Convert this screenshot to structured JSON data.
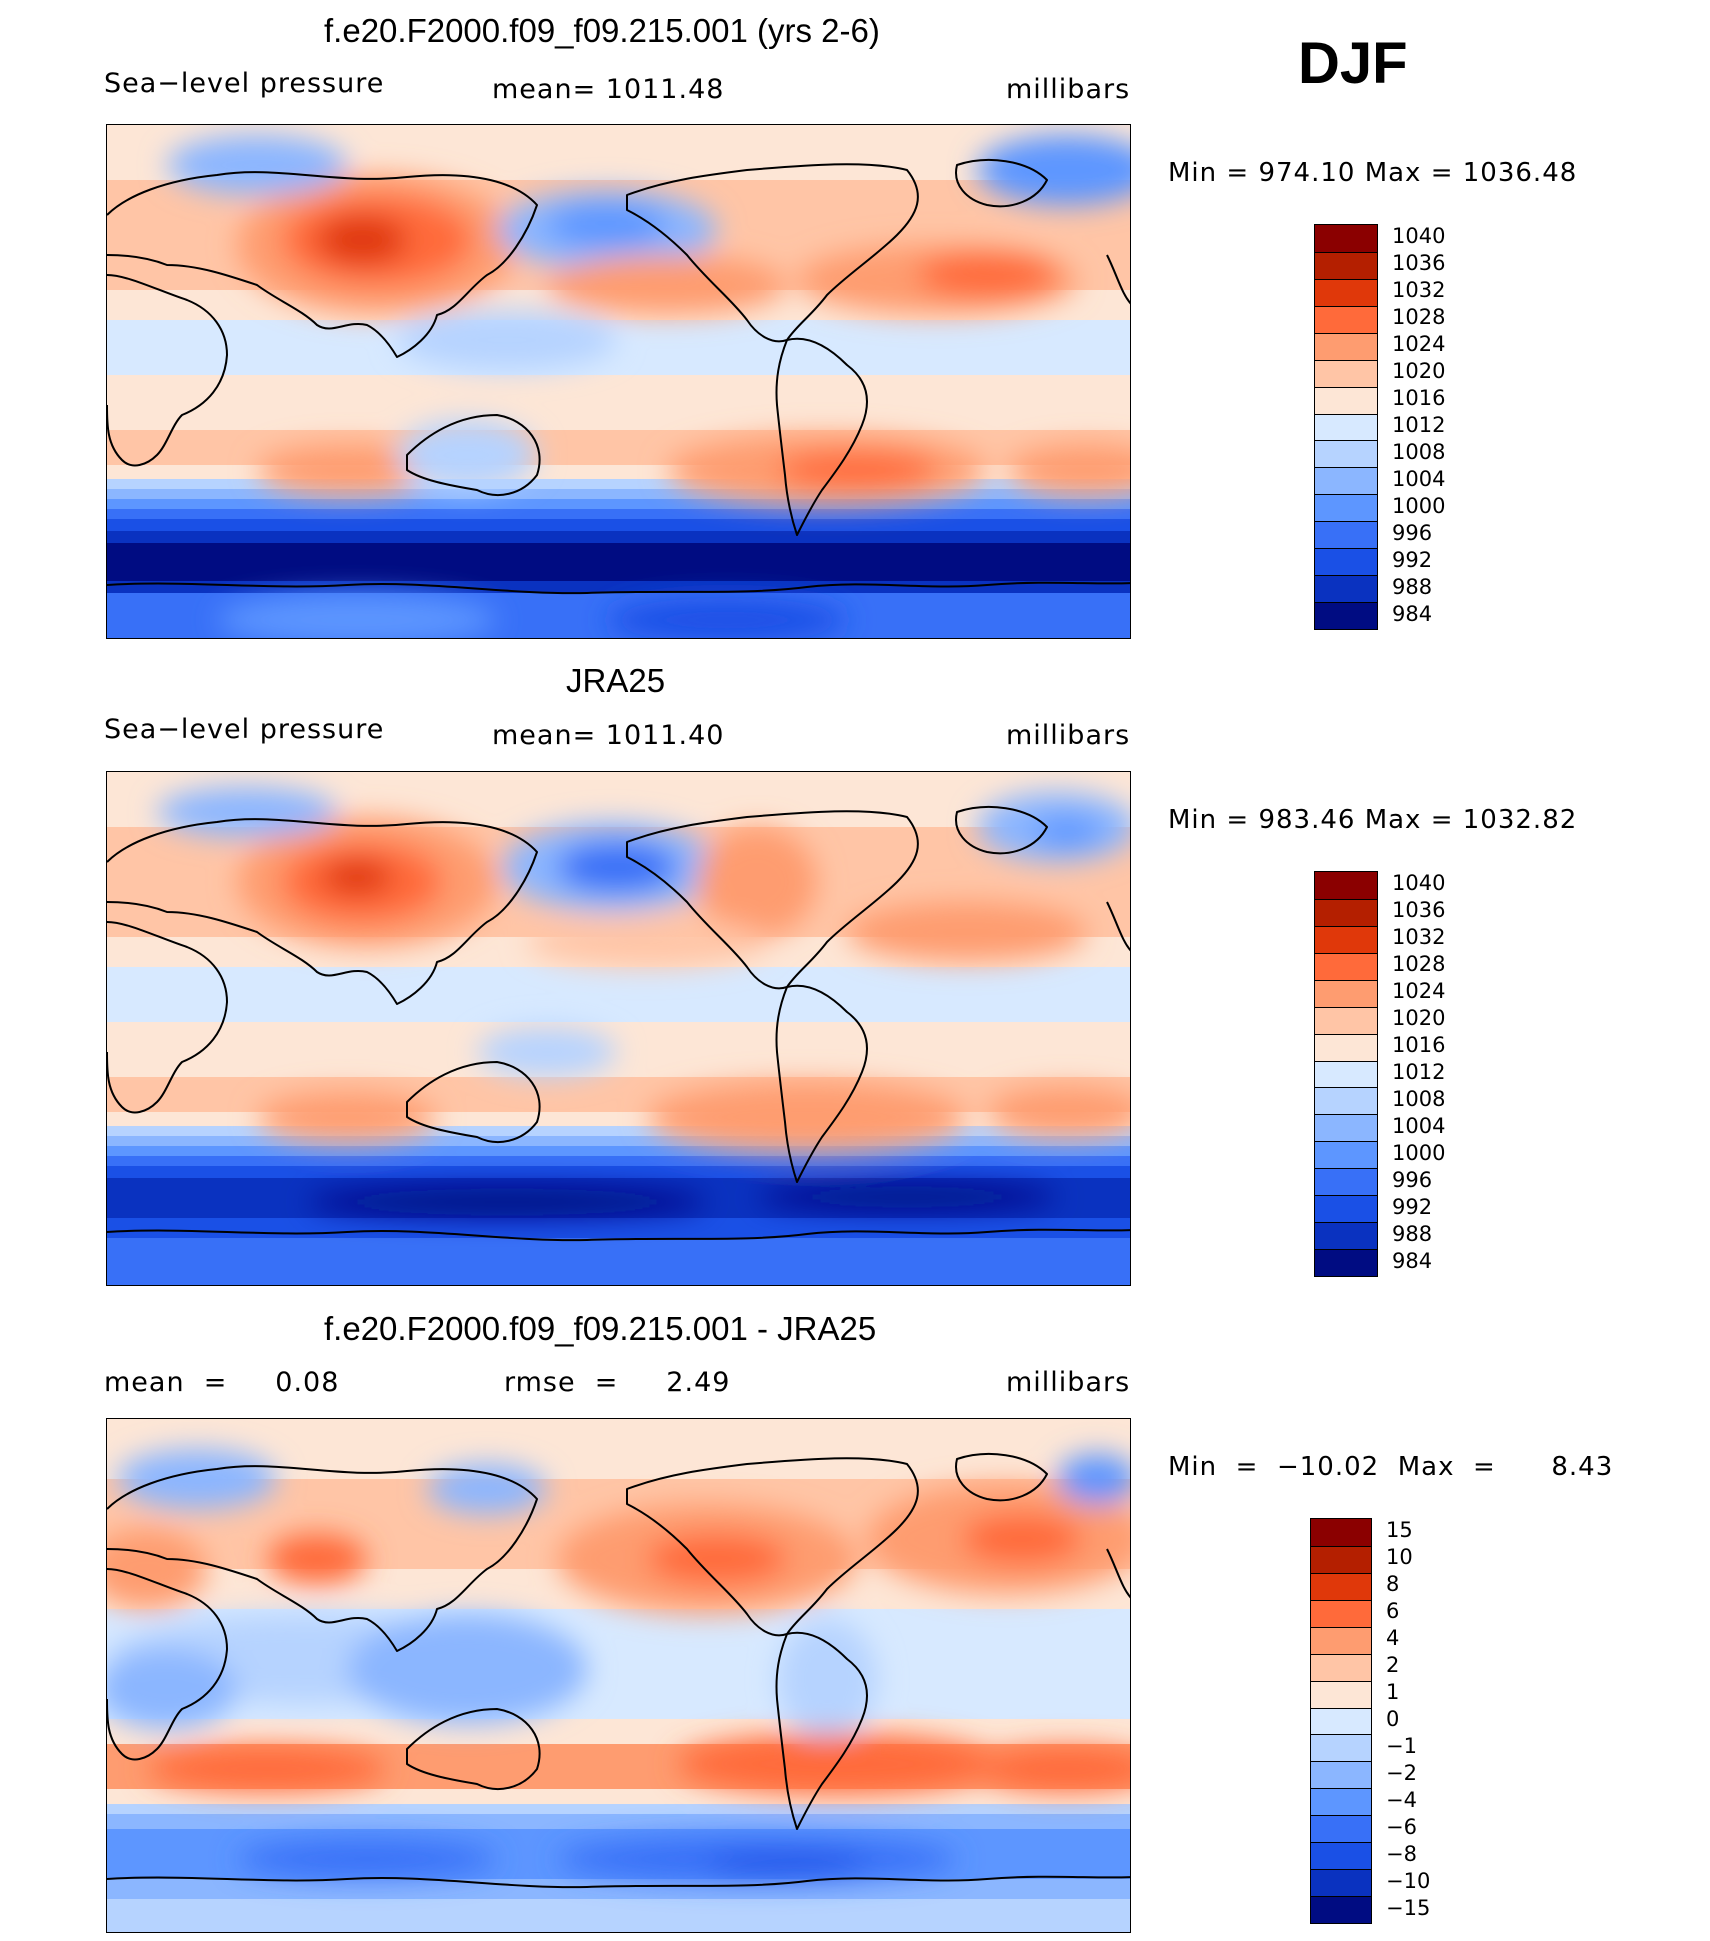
{
  "season": "DJF",
  "chart_data": [
    {
      "type": "heatmap",
      "title": "f.e20.F2000.f09_f09.215.001 (yrs 2-6)",
      "variable": "Sea−level pressure",
      "mean_label": "mean=  1011.48",
      "units": "millibars",
      "minmax_label": "Min  =  974.10  Max  =  1036.48",
      "min": 974.1,
      "max": 1036.48,
      "mean": 1011.48,
      "colorbar_levels": [
        "1040",
        "1036",
        "1032",
        "1028",
        "1024",
        "1020",
        "1016",
        "1012",
        "1008",
        "1004",
        "1000",
        "996",
        "992",
        "988",
        "984"
      ],
      "colorbar_colors": [
        "#8b0000",
        "#b41f00",
        "#e0380a",
        "#ff6a3a",
        "#fe9c70",
        "#ffc5a6",
        "#fde6d6",
        "#d7e9ff",
        "#b6d3ff",
        "#8bb6ff",
        "#5d96ff",
        "#3870f7",
        "#1a50e6",
        "#0a32c0",
        "#000c82"
      ]
    },
    {
      "type": "heatmap",
      "title": "JRA25",
      "variable": "Sea−level pressure",
      "mean_label": "mean=  1011.40",
      "units": "millibars",
      "minmax_label": "Min  =  983.46  Max  =  1032.82",
      "min": 983.46,
      "max": 1032.82,
      "mean": 1011.4,
      "colorbar_levels": [
        "1040",
        "1036",
        "1032",
        "1028",
        "1024",
        "1020",
        "1016",
        "1012",
        "1008",
        "1004",
        "1000",
        "996",
        "992",
        "988",
        "984"
      ],
      "colorbar_colors": [
        "#8b0000",
        "#b41f00",
        "#e0380a",
        "#ff6a3a",
        "#fe9c70",
        "#ffc5a6",
        "#fde6d6",
        "#d7e9ff",
        "#b6d3ff",
        "#8bb6ff",
        "#5d96ff",
        "#3870f7",
        "#1a50e6",
        "#0a32c0",
        "#000c82"
      ]
    },
    {
      "type": "heatmap",
      "title": "f.e20.F2000.f09_f09.215.001 - JRA25",
      "mean_label": "mean  =     0.08",
      "rmse_label": "rmse  =     2.49",
      "units": "millibars",
      "minmax_label": "Min  =  −10.02  Max  =      8.43",
      "min": -10.02,
      "max": 8.43,
      "mean": 0.08,
      "rmse": 2.49,
      "colorbar_levels": [
        "15",
        "10",
        "8",
        "6",
        "4",
        "2",
        "1",
        "0",
        "−1",
        "−2",
        "−4",
        "−6",
        "−8",
        "−10",
        "−15"
      ],
      "colorbar_colors": [
        "#8b0000",
        "#b41f00",
        "#e0380a",
        "#ff6a3a",
        "#fe9c70",
        "#ffc5a6",
        "#fde6d6",
        "#d7e9ff",
        "#b6d3ff",
        "#8bb6ff",
        "#5d96ff",
        "#3870f7",
        "#1a50e6",
        "#0a32c0",
        "#000c82"
      ]
    }
  ]
}
